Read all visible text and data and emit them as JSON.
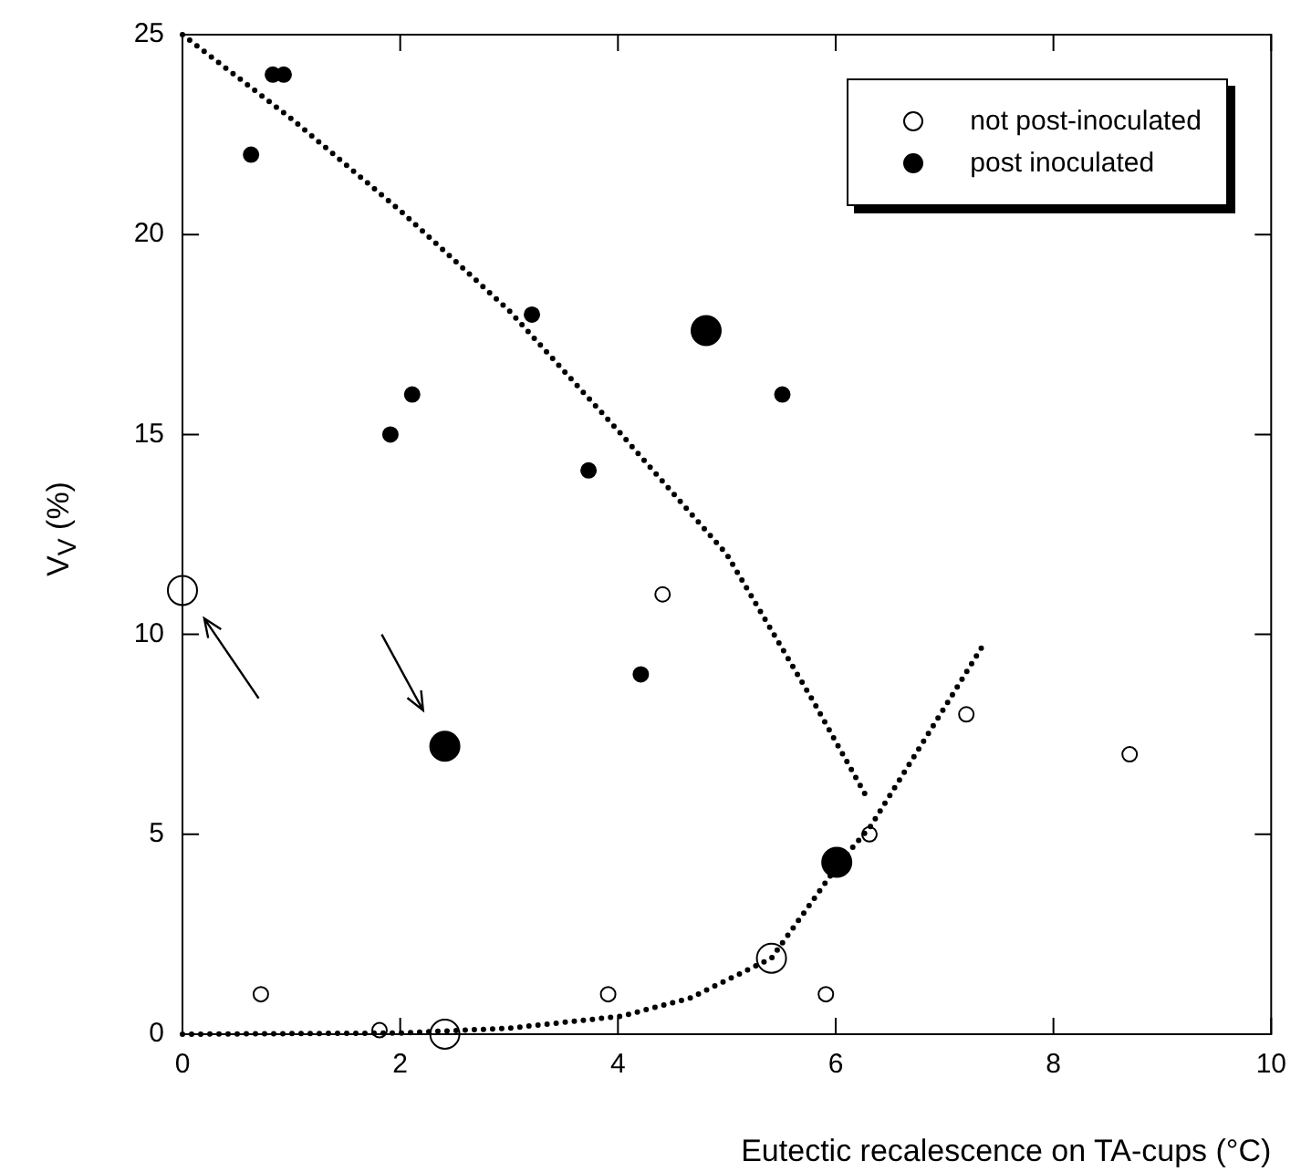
{
  "chart_data": {
    "type": "bubble",
    "xlabel": "Eutectic recalescence on TA-cups (°C)",
    "ylabel": "V$_{V}$ (%)",
    "xlim": [
      0,
      10
    ],
    "xticks": [
      0,
      2,
      4,
      6,
      8,
      10
    ],
    "ylim": [
      0,
      25
    ],
    "yticks": [
      0,
      5,
      10,
      15,
      20,
      25
    ],
    "grid": false,
    "legend": "top right",
    "series": [
      {
        "name": "not post-inoculated",
        "color": "#ffffff",
        "x": [
          0,
          0.72,
          1.81,
          2.41,
          3.91,
          4.41,
          5.41,
          5.91,
          6.31,
          7.2,
          8.7
        ],
        "values": [
          11.1,
          1.0,
          0.1,
          0,
          1.0,
          11.0,
          1.9,
          1.0,
          5.0,
          8.0,
          7.0
        ],
        "sizes": [
          1,
          0.25,
          0.25,
          1,
          0.25,
          0.25,
          1,
          0.25,
          0.25,
          0.25,
          0.25
        ]
      },
      {
        "name": "post inoculated",
        "color": "#000000",
        "x": [
          0.63,
          0.83,
          0.93,
          1.91,
          2.11,
          3.21,
          3.73,
          4.81,
          5.51,
          4.21,
          2.41,
          6.01
        ],
        "values": [
          22.0,
          24.0,
          24.0,
          15.0,
          16.0,
          18.0,
          14.1,
          17.6,
          16.0,
          9.0,
          7.2,
          4.3
        ],
        "sizes": [
          0.25,
          0.25,
          0.25,
          0.25,
          0.25,
          0.25,
          0.25,
          1,
          0.25,
          0.25,
          1,
          1
        ]
      },
      {
        "type": "line",
        "color": "#000000",
        "line_style": "dotted",
        "marker": "none",
        "x": [
          0,
          1,
          2,
          3,
          4,
          5,
          5.8,
          6.27
        ],
        "values": [
          25,
          22.9,
          20.6,
          18.1,
          15.1,
          12.0,
          8.3,
          6.0
        ]
      },
      {
        "type": "line",
        "color": "#000000",
        "line_style": "dotted",
        "marker": "none",
        "x": [
          0,
          2,
          3,
          4.03,
          4.66,
          5.41,
          6.04,
          6.32,
          6.87,
          7.37
        ],
        "values": [
          0,
          0.03,
          0.15,
          0.45,
          0.9,
          1.9,
          4.3,
          5.2,
          7.6,
          9.8
        ]
      }
    ]
  }
}
